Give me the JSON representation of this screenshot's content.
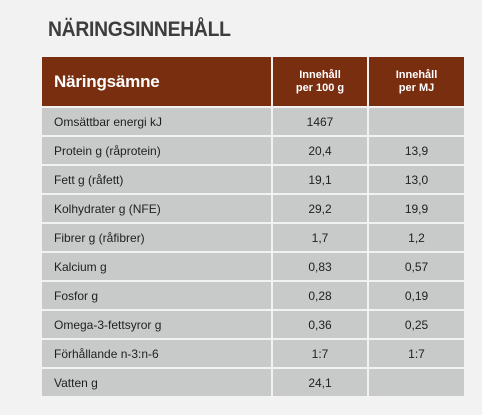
{
  "title": "NÄRINGSINNEHÅLL",
  "table": {
    "header": {
      "nutrient": "Näringsämne",
      "per100_line1": "Innehåll",
      "per100_line2": "per 100 g",
      "perMJ_line1": "Innehåll",
      "perMJ_line2": "per MJ"
    },
    "rows": [
      {
        "name": "Omsättbar energi kJ",
        "per100": "1467",
        "perMJ": ""
      },
      {
        "name": "Protein  g (råprotein)",
        "per100": "20,4",
        "perMJ": "13,9"
      },
      {
        "name": "Fett g (råfett)",
        "per100": "19,1",
        "perMJ": "13,0"
      },
      {
        "name": "Kolhydrater g (NFE)",
        "per100": "29,2",
        "perMJ": "19,9"
      },
      {
        "name": "Fibrer g (råfibrer)",
        "per100": "1,7",
        "perMJ": "1,2"
      },
      {
        "name": "Kalcium  g",
        "per100": "0,83",
        "perMJ": "0,57"
      },
      {
        "name": "Fosfor g",
        "per100": "0,28",
        "perMJ": "0,19"
      },
      {
        "name": "Omega-3-fettsyror g",
        "per100": "0,36",
        "perMJ": "0,25"
      },
      {
        "name": "Förhållande n-3:n-6",
        "per100": "1:7",
        "perMJ": "1:7"
      },
      {
        "name": "Vatten g",
        "per100": "24,1",
        "perMJ": ""
      }
    ]
  },
  "colors": {
    "header_bg": "#7a2e10",
    "cell_bg": "#c8c9c9",
    "page_bg": "#f2f2f2"
  }
}
